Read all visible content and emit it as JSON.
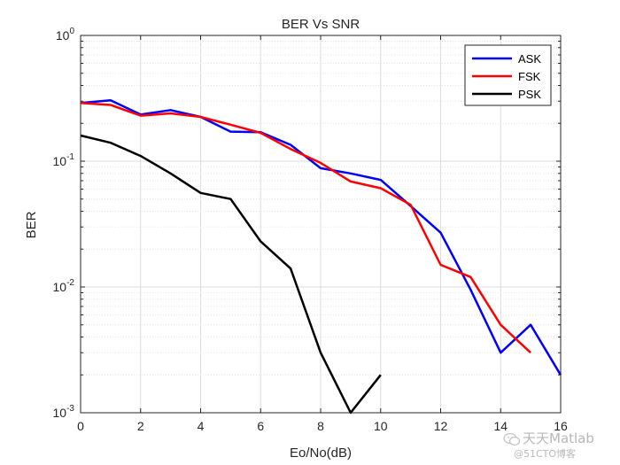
{
  "chart_data": {
    "type": "line",
    "title": "BER Vs SNR",
    "xlabel": "Eo/No(dB)",
    "ylabel": "BER",
    "xlim": [
      0,
      16
    ],
    "ylim": [
      0.001,
      1
    ],
    "yscale": "log",
    "grid": true,
    "minor_grid": true,
    "legend_position": "top-right",
    "x_ticks": [
      "0",
      "2",
      "4",
      "6",
      "8",
      "10",
      "12",
      "14",
      "16"
    ],
    "y_ticks": [
      {
        "base": "10",
        "exp": "0"
      },
      {
        "base": "10",
        "exp": "-1"
      },
      {
        "base": "10",
        "exp": "-2"
      },
      {
        "base": "10",
        "exp": "-3"
      }
    ],
    "series": [
      {
        "name": "ASK",
        "color": "#0000ff",
        "x": [
          0,
          1,
          2,
          3,
          4,
          5,
          6,
          7,
          8,
          9,
          10,
          11,
          12,
          13,
          14,
          15,
          16
        ],
        "y": [
          0.29,
          0.305,
          0.235,
          0.255,
          0.225,
          0.172,
          0.17,
          0.135,
          0.088,
          0.08,
          0.071,
          0.044,
          0.027,
          0.0095,
          0.003,
          0.005,
          0.002
        ]
      },
      {
        "name": "FSK",
        "color": "#ff0000",
        "x": [
          0,
          1,
          2,
          3,
          4,
          5,
          6,
          7,
          8,
          9,
          10,
          11,
          12,
          13,
          14,
          15
        ],
        "y": [
          0.29,
          0.28,
          0.23,
          0.24,
          0.225,
          0.195,
          0.168,
          0.125,
          0.097,
          0.069,
          0.061,
          0.045,
          0.015,
          0.012,
          0.005,
          0.003
        ]
      },
      {
        "name": "PSK",
        "color": "#000000",
        "x": [
          0,
          1,
          2,
          3,
          4,
          5,
          6,
          7,
          8,
          9,
          10
        ],
        "y": [
          0.16,
          0.14,
          0.11,
          0.08,
          0.056,
          0.05,
          0.023,
          0.014,
          0.003,
          0.001,
          0.002
        ]
      }
    ]
  },
  "watermark": {
    "name": "天天Matlab",
    "sub": "@51CTO博客",
    "logo_icon": "wechat-logo-icon"
  }
}
